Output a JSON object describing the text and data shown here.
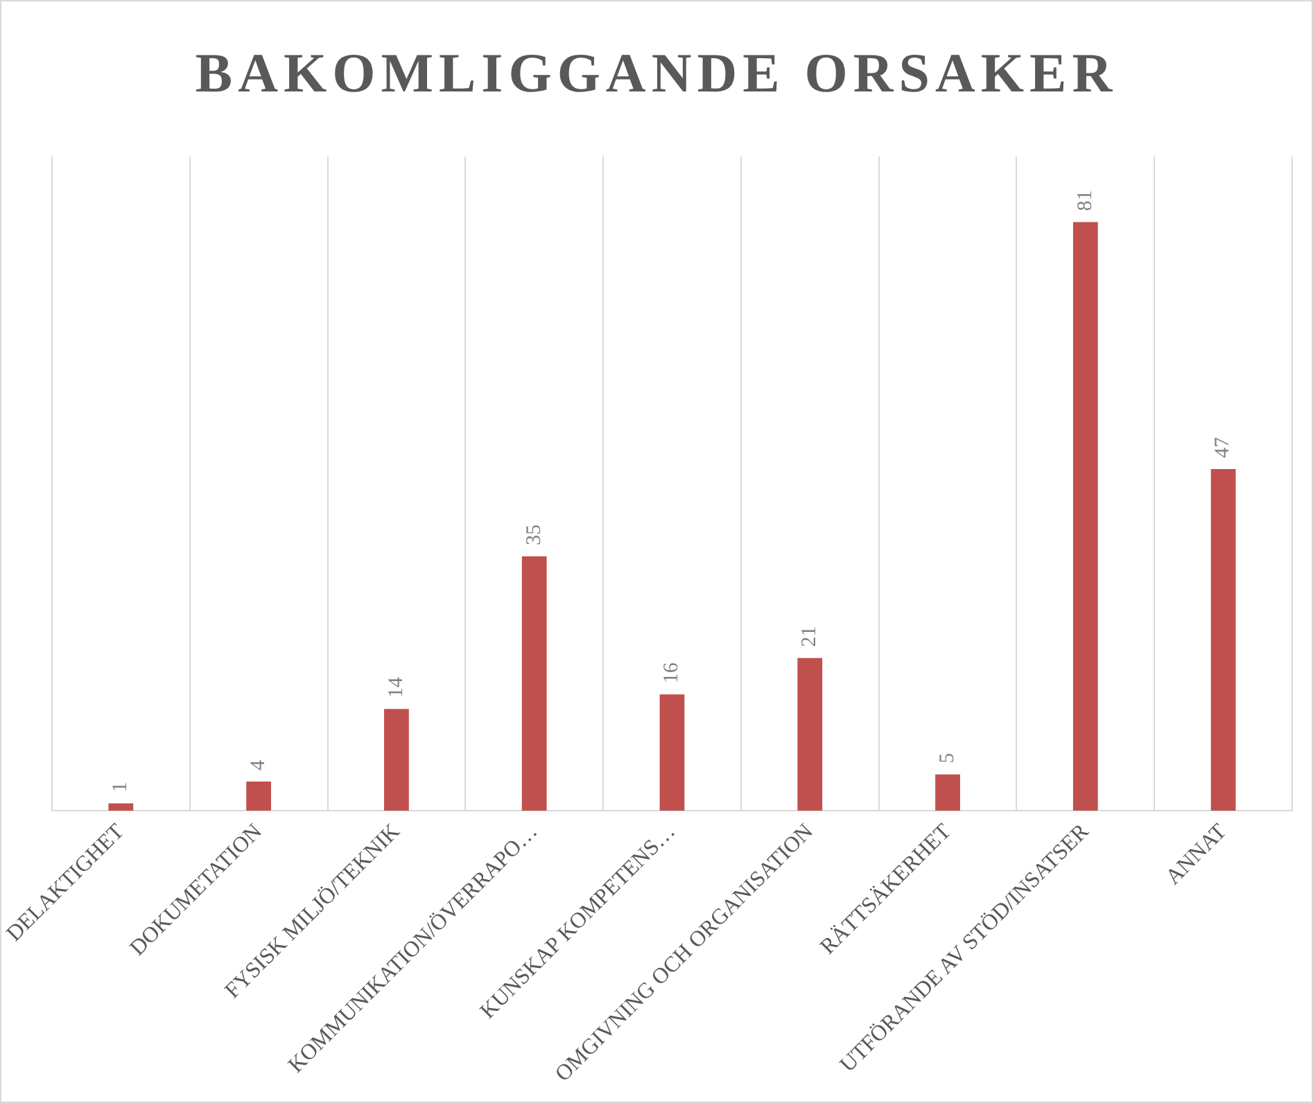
{
  "chart_data": {
    "type": "bar",
    "title": "BAKOMLIGGANDE ORSAKER",
    "categories": [
      "DELAKTIGHET",
      "DOKUMETATION",
      "FYSISK MILJÖ/TEKNIK",
      "KOMMUNIKATION/ÖVERRAPO…",
      "KUNSKAP KOMPETENS…",
      "OMGIVNING OCH ORGANISATION",
      "RÄTTSÄKERHET",
      "UTFÖRANDE AV STÖD/INSATSER",
      "ANNAT"
    ],
    "values": [
      1,
      4,
      14,
      35,
      16,
      21,
      5,
      81,
      47
    ],
    "color": "#c0504d",
    "data_labels": true,
    "grid": "x",
    "legend": false,
    "tick_labels": "x"
  }
}
